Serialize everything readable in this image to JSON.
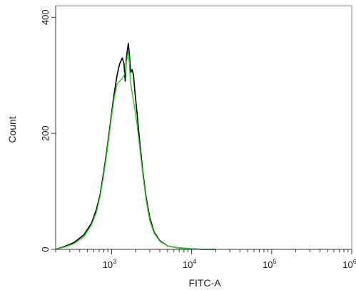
{
  "chart_data": {
    "type": "line",
    "title": "",
    "xlabel": "FITC-A",
    "ylabel": "Count",
    "x_scale": "log",
    "xlim": [
      200,
      1000000
    ],
    "ylim": [
      0,
      420
    ],
    "x_ticks": [
      {
        "value": 1000,
        "base": "10",
        "exp": "3"
      },
      {
        "value": 10000,
        "base": "10",
        "exp": "4"
      },
      {
        "value": 100000,
        "base": "10",
        "exp": "5"
      },
      {
        "value": 1000000,
        "base": "10",
        "exp": "6"
      }
    ],
    "y_ticks": [
      {
        "value": 0,
        "label": "0"
      },
      {
        "value": 200,
        "label": "200"
      },
      {
        "value": 400,
        "label": "400"
      }
    ],
    "grid": false,
    "legend": "none",
    "series": [
      {
        "color": "#000000",
        "x": [
          200,
          260,
          340,
          450,
          560,
          650,
          720,
          790,
          860,
          930,
          1000,
          1080,
          1170,
          1260,
          1360,
          1430,
          1480,
          1530,
          1580,
          1620,
          1660,
          1700,
          1740,
          1800,
          1880,
          1960,
          2080,
          2250,
          2450,
          2700,
          3000,
          3400,
          4000,
          5000,
          6500,
          8000,
          10000,
          14000,
          20000
        ],
        "y": [
          0,
          5,
          12,
          25,
          45,
          70,
          95,
          130,
          165,
          200,
          235,
          270,
          300,
          320,
          330,
          320,
          290,
          330,
          345,
          355,
          340,
          320,
          305,
          310,
          300,
          270,
          235,
          185,
          135,
          90,
          55,
          30,
          15,
          6,
          3,
          2,
          1,
          0,
          0
        ]
      },
      {
        "color": "#22cc22",
        "x": [
          200,
          260,
          340,
          450,
          560,
          650,
          720,
          790,
          860,
          930,
          1000,
          1080,
          1170,
          1260,
          1360,
          1430,
          1480,
          1530,
          1580,
          1620,
          1660,
          1700,
          1740,
          1800,
          1880,
          1960,
          2080,
          2250,
          2450,
          2700,
          3000,
          3400,
          4000,
          5000,
          6500,
          8000,
          10000,
          14000,
          20000
        ],
        "y": [
          0,
          4,
          10,
          22,
          42,
          65,
          92,
          125,
          160,
          195,
          230,
          262,
          285,
          290,
          295,
          300,
          305,
          320,
          335,
          340,
          325,
          300,
          285,
          270,
          255,
          240,
          215,
          175,
          130,
          85,
          50,
          28,
          14,
          6,
          3,
          2,
          1,
          0,
          0
        ]
      }
    ]
  }
}
